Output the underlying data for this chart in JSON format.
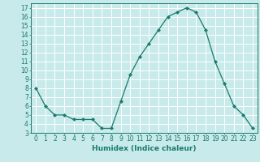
{
  "x": [
    0,
    1,
    2,
    3,
    4,
    5,
    6,
    7,
    8,
    9,
    10,
    11,
    12,
    13,
    14,
    15,
    16,
    17,
    18,
    19,
    20,
    21,
    22,
    23
  ],
  "y": [
    8,
    6,
    5,
    5,
    4.5,
    4.5,
    4.5,
    3.5,
    3.5,
    6.5,
    9.5,
    11.5,
    13,
    14.5,
    16,
    16.5,
    17,
    16.5,
    14.5,
    11,
    8.5,
    6,
    5,
    3.5
  ],
  "line_color": "#1a7a6e",
  "marker_color": "#1a7a6e",
  "bg_color": "#c8eaea",
  "grid_color": "#ffffff",
  "xlabel": "Humidex (Indice chaleur)",
  "xlim": [
    -0.5,
    23.5
  ],
  "ylim": [
    3,
    17.5
  ],
  "yticks": [
    3,
    4,
    5,
    6,
    7,
    8,
    9,
    10,
    11,
    12,
    13,
    14,
    15,
    16,
    17
  ],
  "xticks": [
    0,
    1,
    2,
    3,
    4,
    5,
    6,
    7,
    8,
    9,
    10,
    11,
    12,
    13,
    14,
    15,
    16,
    17,
    18,
    19,
    20,
    21,
    22,
    23
  ],
  "xlabel_fontsize": 6.5,
  "tick_fontsize": 5.5,
  "marker_size": 2.2,
  "linewidth": 0.9
}
